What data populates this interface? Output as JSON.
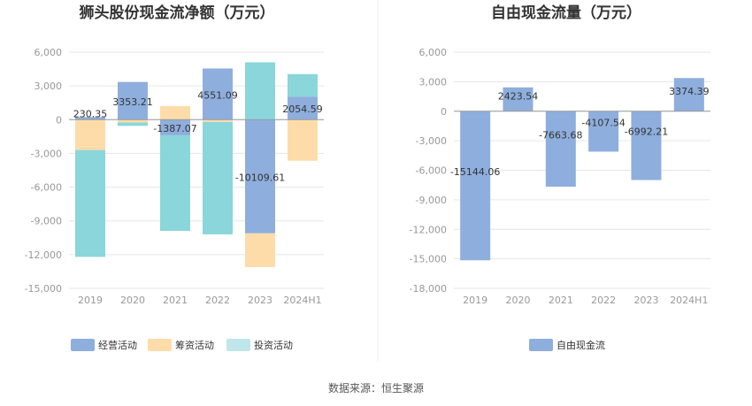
{
  "source": "数据来源：恒生聚源",
  "colors": {
    "operating": "#8eaedd",
    "financing": "#fddcaa",
    "investing": "#8ad6da",
    "investing_legend": "#bfe6e8",
    "free": "#8eaedd",
    "grid": "#e6e6e6",
    "axis": "#999999",
    "divider": "#eeeeee"
  },
  "chart_data": [
    {
      "type": "bar",
      "stacked": true,
      "title": "狮头股份现金流净额（万元）",
      "categories": [
        "2019",
        "2020",
        "2021",
        "2022",
        "2023",
        "2024H1"
      ],
      "yticks": [
        "6,000",
        "3,000",
        "0",
        "-3,000",
        "-6,000",
        "-9,000",
        "-12,000",
        "-15,000"
      ],
      "ylim": [
        -15000,
        6000
      ],
      "grid": true,
      "legend_position": "bottom-left",
      "series": [
        {
          "name": "经营活动",
          "key": "operating",
          "values": [
            230.35,
            3353.21,
            -1387.07,
            4551.09,
            -10109.61,
            2054.59
          ]
        },
        {
          "name": "筹资活动",
          "key": "financing",
          "values": [
            -2700,
            -250,
            1200,
            -200,
            -3000,
            -3650
          ]
        },
        {
          "name": "投资活动",
          "key": "investing",
          "values": [
            -9500,
            -300,
            -8500,
            -10000,
            5100,
            2000
          ]
        }
      ],
      "data_labels": [
        "230.35",
        "3353.21",
        "-1387.07",
        "4551.09",
        "-10109.61",
        "2054.59"
      ]
    },
    {
      "type": "bar",
      "title": "自由现金流量（万元）",
      "categories": [
        "2019",
        "2020",
        "2021",
        "2022",
        "2023",
        "2024H1"
      ],
      "yticks": [
        "6,000",
        "3,000",
        "0",
        "-3,000",
        "-6,000",
        "-9,000",
        "-12,000",
        "-15,000",
        "-18,000"
      ],
      "ylim": [
        -18000,
        6000
      ],
      "grid": true,
      "legend_position": "bottom-center",
      "series": [
        {
          "name": "自由现金流",
          "key": "free",
          "values": [
            -15144.06,
            2423.54,
            -7663.68,
            -4107.54,
            -6992.21,
            3374.39
          ]
        }
      ],
      "data_labels": [
        "-15144.06",
        "2423.54",
        "-7663.68",
        "-4107.54",
        "-6992.21",
        "3374.39"
      ]
    }
  ]
}
